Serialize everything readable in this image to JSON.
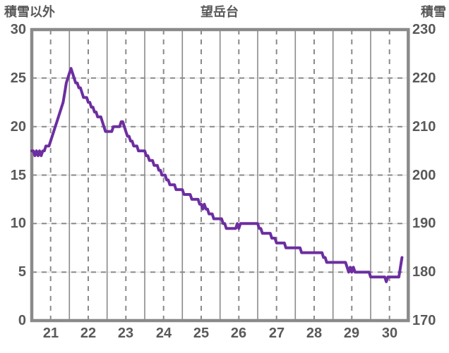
{
  "title": "望岳台",
  "left_axis_label": "積雪以外",
  "right_axis_label": "積雪",
  "colors": {
    "line": "#6C2EA0",
    "grid": "#8A8A8A",
    "grid_light": "#D8D8D8",
    "border": "#8A8A8A",
    "text": "#595959",
    "background": "#FFFFFF"
  },
  "chart_data": {
    "type": "line",
    "title": "望岳台",
    "left_axis_label": "積雪以外",
    "right_axis_label": "積雪",
    "left_ylim": [
      0,
      30
    ],
    "right_ylim": [
      170,
      230
    ],
    "left_ticks": [
      "0",
      "5",
      "10",
      "15",
      "20",
      "25",
      "30"
    ],
    "right_ticks": [
      "170",
      "180",
      "190",
      "200",
      "210",
      "220",
      "230"
    ],
    "x_tick_labels": [
      "21",
      "22",
      "23",
      "24",
      "25",
      "26",
      "27",
      "28",
      "29",
      "30"
    ],
    "x_days": 10,
    "grid": true,
    "legend": "none",
    "series": [
      {
        "name": "積雪",
        "axis": "right",
        "unit": "cm",
        "sampling": "hourly",
        "x_start_hour": 0,
        "values": [
          205,
          205,
          204,
          205,
          204,
          205,
          204,
          205,
          205,
          206,
          206,
          206,
          207,
          208,
          209,
          210,
          211,
          212,
          213,
          214,
          215,
          217,
          219,
          220,
          221,
          222,
          221,
          220,
          219,
          219,
          218,
          218,
          217,
          216,
          216,
          216,
          215,
          215,
          214,
          214,
          213,
          213,
          212,
          212,
          212,
          211,
          210,
          209,
          209,
          209,
          209,
          209,
          210,
          210,
          210,
          210,
          210,
          211,
          211,
          210,
          209,
          208,
          208,
          207,
          207,
          206,
          206,
          206,
          205,
          205,
          205,
          205,
          205,
          204,
          204,
          203,
          203,
          203,
          202,
          202,
          202,
          201,
          201,
          200,
          200,
          200,
          199,
          199,
          198,
          198,
          198,
          198,
          197,
          197,
          197,
          197,
          197,
          196,
          196,
          196,
          196,
          196,
          195,
          195,
          195,
          195,
          195,
          194,
          194,
          193,
          194,
          193,
          193,
          192,
          192,
          192,
          191,
          191,
          191,
          191,
          191,
          191,
          190,
          190,
          189,
          189,
          189,
          189,
          189,
          189,
          189,
          190,
          189,
          190,
          190,
          190,
          190,
          190,
          190,
          190,
          190,
          190,
          190,
          190,
          190,
          189,
          189,
          188,
          188,
          188,
          188,
          188,
          188,
          187,
          187,
          187,
          186,
          186,
          186,
          186,
          186,
          186,
          185,
          185,
          185,
          185,
          185,
          185,
          185,
          185,
          185,
          185,
          184,
          184,
          184,
          184,
          184,
          184,
          184,
          184,
          184,
          184,
          184,
          184,
          184,
          184,
          183,
          183,
          182,
          182,
          182,
          182,
          182,
          182,
          182,
          182,
          182,
          182,
          182,
          182,
          182,
          181,
          180,
          181,
          180,
          181,
          180,
          180,
          180,
          180,
          180,
          180,
          180,
          180,
          180,
          180,
          179,
          179,
          179,
          179,
          179,
          179,
          179,
          179,
          179,
          179,
          178,
          179,
          179,
          179,
          179,
          179,
          179,
          179,
          179,
          181,
          183
        ]
      }
    ]
  }
}
